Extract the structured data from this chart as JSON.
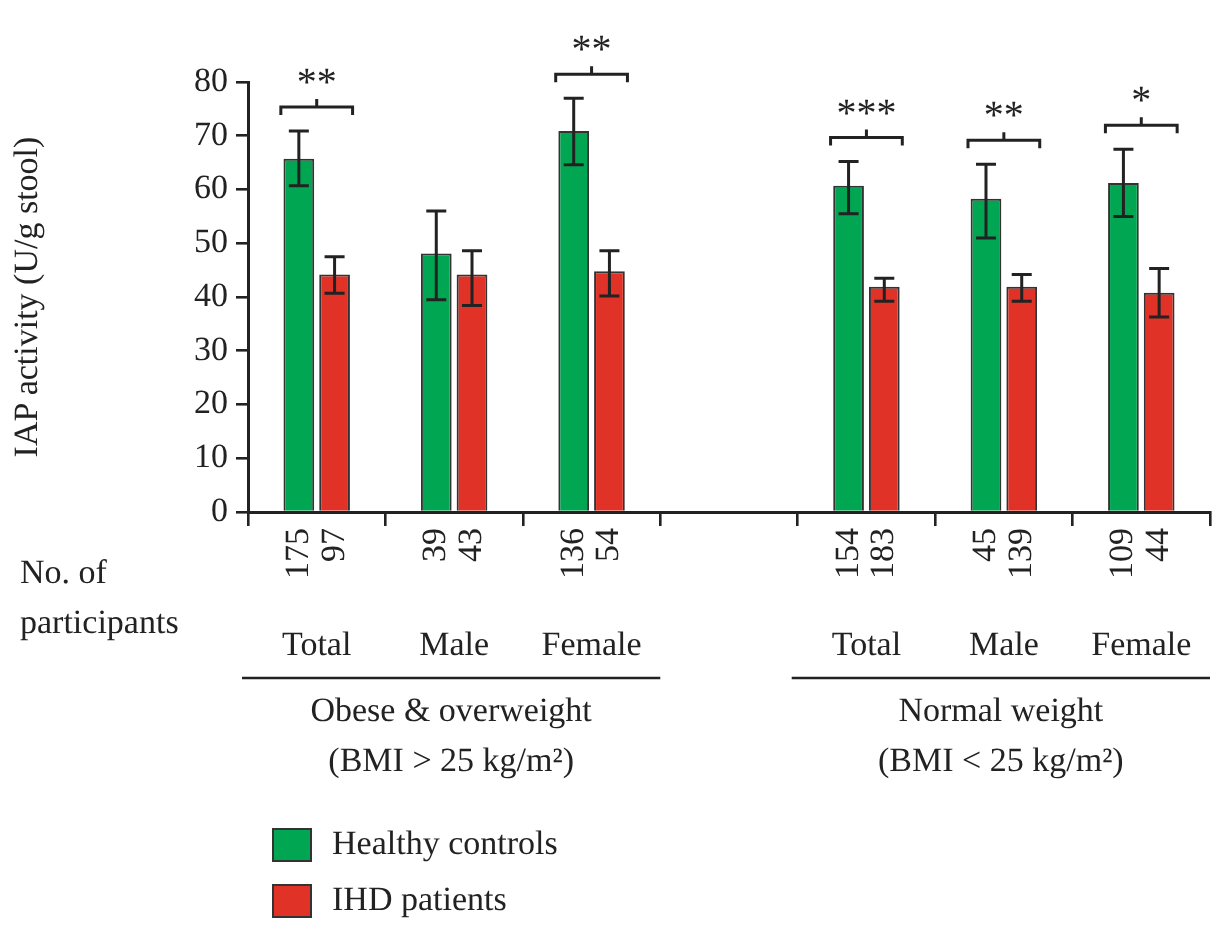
{
  "chart_data": {
    "type": "bar",
    "ylabel": "IAP activity (U/g stool)",
    "categories": [
      "Total",
      "Male",
      "Female",
      null,
      "Total",
      "Male",
      "Female"
    ],
    "series": [
      {
        "name": "Healthy controls",
        "color": "#00a651",
        "values": [
          65.7,
          48.1,
          70.9,
          null,
          60.7,
          58.3,
          61.2
        ],
        "errors": [
          [
            60.7,
            70.9
          ],
          [
            39.5,
            56
          ],
          [
            64.6,
            77
          ],
          null,
          [
            55.5,
            65.2
          ],
          [
            51,
            64.7
          ],
          [
            55,
            67.5
          ]
        ]
      },
      {
        "name": "IHD patients",
        "color": "#e03226",
        "values": [
          44.2,
          44.2,
          44.8,
          null,
          41.9,
          41.9,
          40.8
        ],
        "errors": [
          [
            40.7,
            47.5
          ],
          [
            38.4,
            48.6
          ],
          [
            40.2,
            48.6
          ],
          null,
          [
            39.2,
            43.5
          ],
          [
            39.2,
            44.2
          ],
          [
            36.3,
            45.3
          ]
        ]
      }
    ],
    "ylim": [
      0,
      80
    ],
    "yticks": [
      0,
      10,
      20,
      30,
      40,
      50,
      60,
      70,
      80
    ],
    "legend": "bottom left",
    "annotations": [
      "No. of\nparticipants",
      "Obese & overweight\n(BMI > 25 kg/m²)",
      "Normal weight\n(BMI < 25 kg/m²)",
      "**",
      null,
      "**",
      "***",
      "**",
      "*",
      "175",
      "97",
      "39",
      "43",
      "136",
      "54",
      "154",
      "183",
      "45",
      "139",
      "109",
      "44"
    ]
  }
}
